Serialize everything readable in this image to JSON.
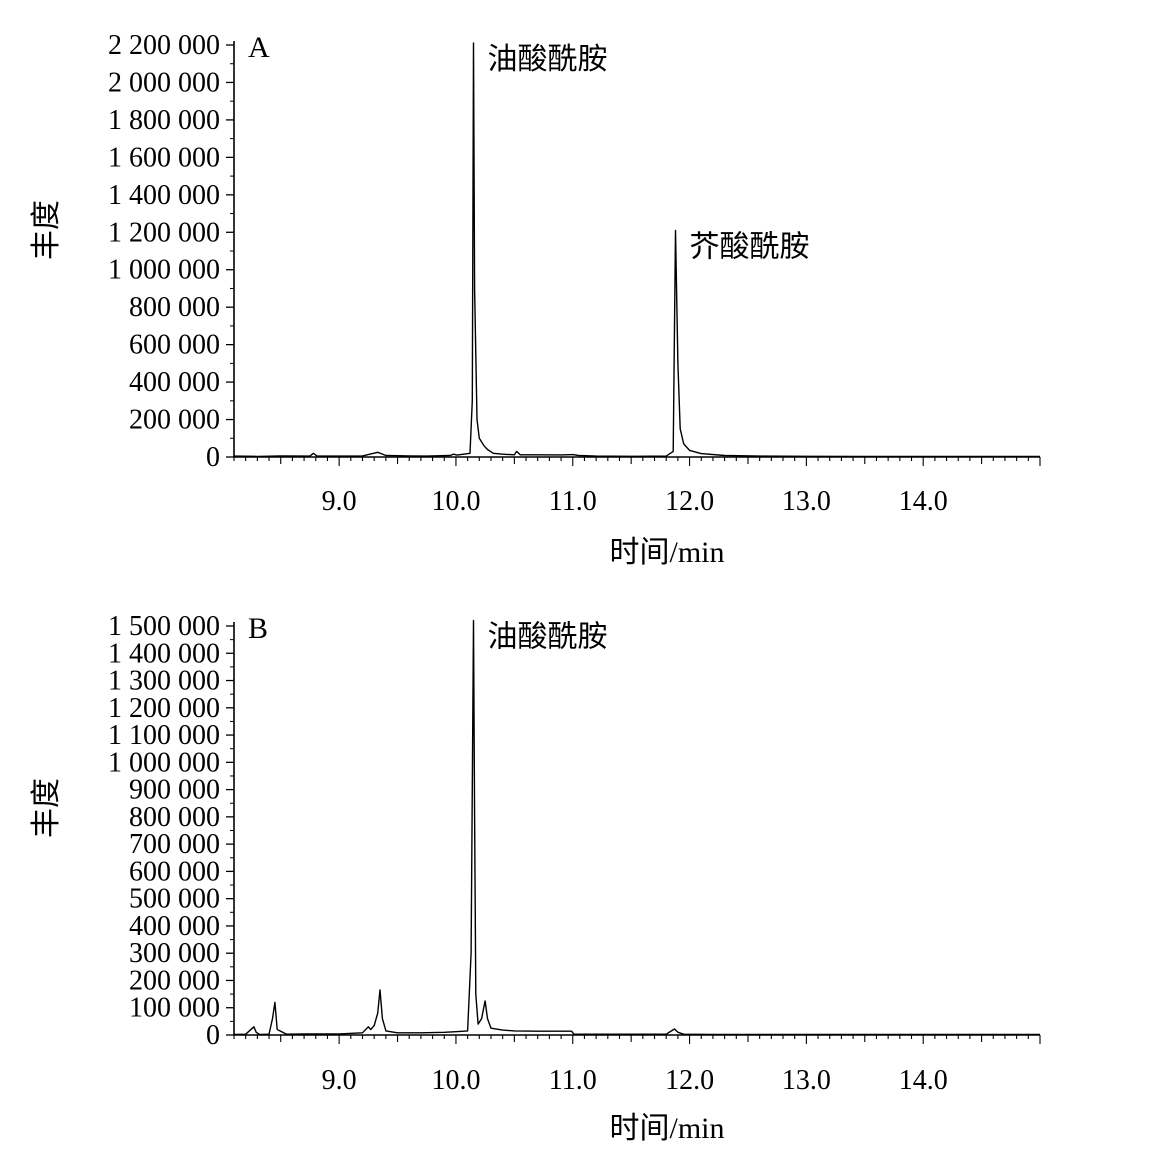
{
  "chart_data": [
    {
      "type": "line",
      "panel_label": "A",
      "xlabel": "时间/min",
      "ylabel": "丰度",
      "xlim": [
        8.1,
        15.0
      ],
      "ylim": [
        0,
        2200000
      ],
      "xticks": [
        9.0,
        10.0,
        11.0,
        12.0,
        13.0,
        14.0
      ],
      "xtick_labels": [
        "9.0",
        "10.0",
        "11.0",
        "12.0",
        "13.0",
        "14.0"
      ],
      "yticks": [
        0,
        200000,
        400000,
        600000,
        800000,
        1000000,
        1200000,
        1400000,
        1600000,
        1800000,
        2000000,
        2200000
      ],
      "ytick_labels": [
        "0",
        "200 000",
        "400 000",
        "600 000",
        "800 000",
        "1 000 000",
        "1 200 000",
        "1 400 000",
        "1 600 000",
        "1 800 000",
        "2 000 000",
        "2 200 000"
      ],
      "annotations": [
        {
          "text": "油酸酰胺",
          "x": 10.15,
          "y": 2210000
        },
        {
          "text": "芥酸酰胺",
          "x": 11.88,
          "y": 1210000
        }
      ],
      "series": [
        {
          "x": [
            8.1,
            8.3,
            8.5,
            8.75,
            8.78,
            8.81,
            9.0,
            9.2,
            9.33,
            9.36,
            9.4,
            9.6,
            9.75,
            9.95,
            9.98,
            10.01,
            10.12,
            10.14,
            10.15,
            10.16,
            10.18,
            10.2,
            10.24,
            10.27,
            10.32,
            10.4,
            10.5,
            10.52,
            10.55,
            10.7,
            10.9,
            11.0,
            11.05,
            11.2,
            11.5,
            11.8,
            11.86,
            11.88,
            11.9,
            11.92,
            11.95,
            12.0,
            12.1,
            12.3,
            12.6,
            13.0,
            13.5,
            14.0,
            14.5,
            15.0
          ],
          "y": [
            5000,
            3000,
            6000,
            5000,
            20000,
            6000,
            5000,
            6000,
            25000,
            18000,
            8000,
            6000,
            5000,
            8000,
            15000,
            10000,
            20000,
            300000,
            2210000,
            900000,
            200000,
            100000,
            60000,
            40000,
            20000,
            15000,
            12000,
            30000,
            12000,
            12000,
            11000,
            13000,
            8000,
            5000,
            4000,
            5000,
            30000,
            1210000,
            500000,
            150000,
            70000,
            35000,
            18000,
            8000,
            5000,
            4000,
            3000,
            3000,
            3000,
            3000
          ]
        }
      ]
    },
    {
      "type": "line",
      "panel_label": "B",
      "xlabel": "时间/min",
      "ylabel": "丰度",
      "xlim": [
        8.1,
        15.0
      ],
      "ylim": [
        0,
        1500000
      ],
      "xticks": [
        9.0,
        10.0,
        11.0,
        12.0,
        13.0,
        14.0
      ],
      "xtick_labels": [
        "9.0",
        "10.0",
        "11.0",
        "12.0",
        "13.0",
        "14.0"
      ],
      "yticks": [
        0,
        100000,
        200000,
        300000,
        400000,
        500000,
        600000,
        700000,
        800000,
        900000,
        1000000,
        1100000,
        1200000,
        1300000,
        1400000,
        1500000
      ],
      "ytick_labels": [
        "0",
        "100 000",
        "200 000",
        "300 000",
        "400 000",
        "500 000",
        "600 000",
        "700 000",
        "800 000",
        "900 000",
        "1 000 000",
        "1 100 000",
        "1 200 000",
        "1 300 000",
        "1 400 000",
        "1 500 000"
      ],
      "annotations": [
        {
          "text": "油酸酰胺",
          "x": 10.15,
          "y": 1520000
        }
      ],
      "series": [
        {
          "x": [
            8.1,
            8.2,
            8.27,
            8.29,
            8.32,
            8.4,
            8.43,
            8.45,
            8.47,
            8.55,
            8.7,
            9.0,
            9.2,
            9.25,
            9.27,
            9.3,
            9.33,
            9.35,
            9.37,
            9.4,
            9.5,
            9.7,
            9.9,
            10.0,
            10.1,
            10.13,
            10.15,
            10.16,
            10.17,
            10.19,
            10.22,
            10.25,
            10.27,
            10.3,
            10.4,
            10.5,
            10.7,
            10.99,
            11.01,
            11.3,
            11.8,
            11.87,
            11.9,
            11.95,
            12.2,
            13.0,
            14.0,
            15.0
          ],
          "y": [
            2000,
            3000,
            30000,
            10000,
            2000,
            3000,
            60000,
            120000,
            20000,
            3000,
            4000,
            4000,
            8000,
            30000,
            20000,
            35000,
            80000,
            165000,
            60000,
            15000,
            8000,
            8000,
            10000,
            12000,
            15000,
            300000,
            1520000,
            800000,
            150000,
            40000,
            60000,
            125000,
            60000,
            25000,
            18000,
            15000,
            14000,
            14000,
            3000,
            3000,
            3000,
            22000,
            10000,
            3000,
            2000,
            2000,
            2000,
            2000
          ]
        }
      ]
    }
  ]
}
